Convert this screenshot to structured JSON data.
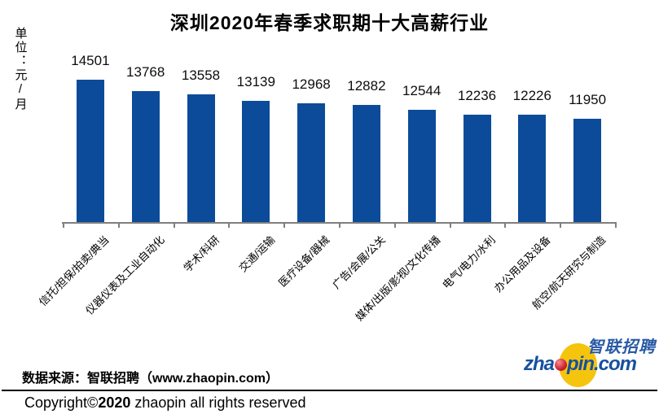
{
  "chart_data": {
    "type": "bar",
    "title": "深圳2020年春季求职期十大高薪行业",
    "ylabel": "单位：元/月",
    "categories": [
      "信托/担保/拍卖/典当",
      "仪器仪表及工业自动化",
      "学术/科研",
      "交通/运输",
      "医疗设备/器械",
      "广告/会展/公关",
      "媒体/出版/影视/文化传播",
      "电气/电力/水利",
      "办公用品及设备",
      "航空/航天研究与制造"
    ],
    "values": [
      14501,
      13768,
      13558,
      13139,
      12968,
      12882,
      12544,
      12236,
      12226,
      11950
    ],
    "value_labels_shown": true,
    "xtick_label_rotation_deg": 45,
    "grid": false,
    "legend": "none",
    "ylim": [
      5240,
      14800
    ]
  },
  "colors": {
    "bar": "#0c4b99",
    "axis": "#7f7f7f",
    "title": "#000000",
    "logo_blue": "#17509f",
    "logo_yellow": "#f5c40d",
    "logo_red": "#cf2030"
  },
  "footer": {
    "source_text": "数据来源：智联招聘（www.zhaopin.com）",
    "copyright_pre": "Copyright©",
    "copyright_year": "2020",
    "copyright_post": " zhaopin all rights reserved"
  },
  "logo": {
    "cn": "智联招聘",
    "en_pre": "zha",
    "en_post": "pin.com"
  }
}
